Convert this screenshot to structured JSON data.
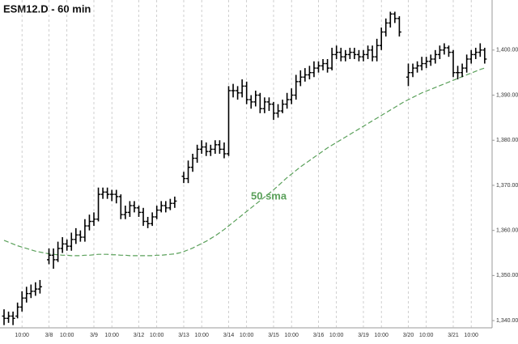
{
  "chart_data": {
    "type": "ohlc",
    "title": "ESM12.D - 60 min",
    "categories": [
      null,
      null,
      null,
      null,
      "10:00",
      null,
      null,
      null,
      null,
      null,
      "3/8",
      null,
      null,
      null,
      "10:00",
      null,
      null,
      null,
      null,
      null,
      "3/9",
      null,
      null,
      null,
      "10:00",
      null,
      null,
      null,
      null,
      null,
      "3/12",
      null,
      null,
      null,
      "10:00",
      null,
      null,
      null,
      null,
      null,
      "3/13",
      null,
      null,
      null,
      "10:00",
      null,
      null,
      null,
      null,
      null,
      "3/14",
      null,
      null,
      null,
      "10:00",
      null,
      null,
      null,
      null,
      null,
      "3/15",
      null,
      null,
      null,
      "10:00",
      null,
      null,
      null,
      null,
      null,
      "3/16",
      null,
      null,
      null,
      "10:00",
      null,
      null,
      null,
      null,
      null,
      "3/19",
      null,
      null,
      null,
      "10:00",
      null,
      null,
      null,
      null,
      null,
      "3/20",
      null,
      null,
      null,
      "10:00",
      null,
      null,
      null,
      null,
      null,
      "3/21",
      null,
      null,
      null,
      "10:00",
      null,
      null,
      null
    ],
    "open": [
      1341,
      1340.5,
      1341,
      1341,
      1343,
      1345,
      1346,
      1346.5,
      1347,
      null,
      1353.5,
      1354.5,
      1353.5,
      1356,
      1357,
      1356.5,
      1358,
      1359,
      1358.5,
      1361,
      1362,
      1362.5,
      1368,
      1368.5,
      1368,
      1368,
      1367.5,
      1363.5,
      1364,
      1365.5,
      1365,
      1364,
      1362,
      1361.5,
      1363,
      1364.5,
      1365.5,
      1365,
      1366,
      null,
      1372,
      1371.5,
      1374,
      1376,
      1378,
      1378.5,
      1377.5,
      1378,
      1379,
      1378,
      1377,
      1391,
      1391,
      1390.5,
      1392,
      1389,
      1388.5,
      1390,
      1387,
      1388.5,
      1388,
      1386,
      1386.5,
      1388,
      1389,
      1390,
      1393,
      1394,
      1394.5,
      1395,
      1396,
      1396.5,
      1397,
      1396,
      1399,
      1399.5,
      1398.5,
      1399,
      1399.5,
      1399,
      1398.5,
      1399,
      1400,
      1398.5,
      1401,
      1404,
      1406,
      1408,
      1407,
      null,
      1394,
      1395,
      1396,
      1396.5,
      1397,
      1397.5,
      1398,
      1399,
      1400,
      1400.5,
      1399.5,
      1395,
      1395,
      1396,
      1398,
      1399,
      1399.5,
      1400
    ],
    "high": [
      1342.5,
      1342,
      1342,
      1344,
      1346.5,
      1347.5,
      1348,
      1348.5,
      1349,
      null,
      1356,
      1356,
      1357.5,
      1358.5,
      1358,
      1359.5,
      1360.5,
      1360,
      1362.5,
      1363.5,
      1364,
      1369.5,
      1369.5,
      1369.5,
      1369,
      1369,
      1368,
      1365.5,
      1366.5,
      1366.5,
      1365.5,
      1365,
      1363,
      1364,
      1365.5,
      1366.5,
      1366.5,
      1367,
      1367.5,
      null,
      1373,
      1375.5,
      1377,
      1379,
      1380,
      1379.5,
      1379,
      1380,
      1380,
      1379.5,
      1392,
      1392.5,
      1392,
      1393.5,
      1393,
      1390,
      1391,
      1390.5,
      1389.5,
      1389.5,
      1388.5,
      1388,
      1389,
      1390.5,
      1391.5,
      1394.5,
      1395.5,
      1396,
      1396.5,
      1397.5,
      1397.5,
      1398,
      1398,
      1400.5,
      1401,
      1400.5,
      1400,
      1400.5,
      1400.5,
      1400,
      1400,
      1401,
      1401,
      1402.5,
      1405,
      1407,
      1408.5,
      1408.5,
      1407.5,
      null,
      1397,
      1397,
      1397.5,
      1398.5,
      1398.5,
      1399,
      1400,
      1401,
      1401.5,
      1401,
      1400,
      1396.5,
      1397,
      1399,
      1400,
      1400.5,
      1401.5,
      1400.5
    ],
    "low": [
      1339,
      1339.5,
      1339,
      1340.5,
      1342,
      1344,
      1345,
      1345.5,
      1346,
      null,
      1352.5,
      1351.5,
      1353,
      1355,
      1355.5,
      1355.5,
      1357,
      1357.5,
      1357.5,
      1360,
      1361,
      1362,
      1367,
      1367,
      1366.5,
      1366,
      1362.5,
      1362.5,
      1363,
      1364,
      1363,
      1361,
      1360.5,
      1361,
      1362.5,
      1364,
      1364,
      1364.5,
      1365,
      null,
      1370.5,
      1370.5,
      1373,
      1375,
      1377,
      1376.5,
      1376.5,
      1377,
      1377,
      1376,
      1376.5,
      1389.5,
      1389,
      1389.5,
      1388,
      1387,
      1387.5,
      1386,
      1386,
      1386.5,
      1384.5,
      1385,
      1386,
      1387,
      1388,
      1389,
      1392,
      1393,
      1393.5,
      1394,
      1395,
      1395.5,
      1395,
      1395.5,
      1398,
      1397.5,
      1397.5,
      1398,
      1398,
      1397.5,
      1397.5,
      1398,
      1397.5,
      1397.5,
      1400,
      1403,
      1405,
      1406,
      1403,
      null,
      1392,
      1394,
      1395,
      1395.5,
      1396,
      1396.5,
      1397,
      1398,
      1399,
      1398.5,
      1394,
      1393.5,
      1394,
      1395,
      1397,
      1398,
      1398.5,
      1397
    ],
    "close": [
      1340.5,
      1341,
      1340.5,
      1343,
      1345,
      1346,
      1346.5,
      1347,
      1347.5,
      null,
      1354.5,
      1353.5,
      1356,
      1357,
      1356.5,
      1358,
      1359,
      1358.5,
      1361,
      1362,
      1362.5,
      1368,
      1368.5,
      1368,
      1368,
      1367.5,
      1363.5,
      1364,
      1365.5,
      1365,
      1364,
      1362,
      1361.5,
      1363,
      1364.5,
      1365.5,
      1365,
      1366,
      1366.5,
      null,
      1371.5,
      1374,
      1376,
      1378,
      1378.5,
      1377.5,
      1378,
      1379,
      1378,
      1377,
      1391,
      1391,
      1390.5,
      1392,
      1389,
      1388.5,
      1390,
      1387,
      1388.5,
      1388,
      1386,
      1386.5,
      1388,
      1389,
      1390,
      1393,
      1394,
      1394.5,
      1395,
      1396,
      1396.5,
      1397,
      1396,
      1399,
      1399.5,
      1398.5,
      1399,
      1399.5,
      1399,
      1398.5,
      1399,
      1400,
      1398.5,
      1401,
      1404,
      1406,
      1408,
      1407,
      1404,
      null,
      1395,
      1396,
      1396.5,
      1397,
      1397.5,
      1398,
      1399,
      1400,
      1400.5,
      1399.5,
      1395,
      1395,
      1396,
      1398,
      1399,
      1399.5,
      1400,
      1398
    ],
    "color": "#000000",
    "sma": {
      "name": "50 sma",
      "color": "#5aa05a",
      "values": [
        1357.8,
        1357.4,
        1357,
        1356.6,
        1356.3,
        1356,
        1355.7,
        1355.4,
        1355.2,
        1355,
        1354.8,
        1354.7,
        1354.6,
        1354.5,
        1354.5,
        1354.4,
        1354.4,
        1354.4,
        1354.5,
        1354.5,
        1354.6,
        1354.7,
        1354.7,
        1354.7,
        1354.6,
        1354.6,
        1354.5,
        1354.5,
        1354.4,
        1354.4,
        1354.4,
        1354.4,
        1354.4,
        1354.4,
        1354.5,
        1354.5,
        1354.6,
        1354.7,
        1354.8,
        1355,
        1355.3,
        1355.7,
        1356.1,
        1356.6,
        1357.1,
        1357.6,
        1358.2,
        1358.8,
        1359.5,
        1360.2,
        1361,
        1361.8,
        1362.6,
        1363.4,
        1364.2,
        1365,
        1365.8,
        1366.6,
        1367.4,
        1368.2,
        1369,
        1369.9,
        1370.8,
        1371.7,
        1372.5,
        1373.3,
        1374.1,
        1374.8,
        1375.5,
        1376.2,
        1376.9,
        1377.6,
        1378.3,
        1378.9,
        1379.5,
        1380.1,
        1380.7,
        1381.3,
        1381.9,
        1382.5,
        1383.1,
        1383.7,
        1384.3,
        1384.9,
        1385.5,
        1386.1,
        1386.7,
        1387.3,
        1387.9,
        1388.5,
        1389,
        1389.5,
        1390,
        1390.5,
        1390.9,
        1391.3,
        1391.7,
        1392.1,
        1392.5,
        1392.9,
        1393.3,
        1393.7,
        1394.1,
        1394.5,
        1394.9,
        1395.3,
        1395.7,
        1396
      ]
    },
    "ylim": [
      1338.4,
      1411.1
    ],
    "yticks": [
      {
        "value": 1340,
        "label": "1,340.00"
      },
      {
        "value": 1350,
        "label": "1,350.00"
      },
      {
        "value": 1360,
        "label": "1,360.00"
      },
      {
        "value": 1370,
        "label": "1,370.00"
      },
      {
        "value": 1380,
        "label": "1,380.00"
      },
      {
        "value": 1390,
        "label": "1,390.00"
      },
      {
        "value": 1400,
        "label": "1,400.00"
      }
    ],
    "grid": true
  }
}
